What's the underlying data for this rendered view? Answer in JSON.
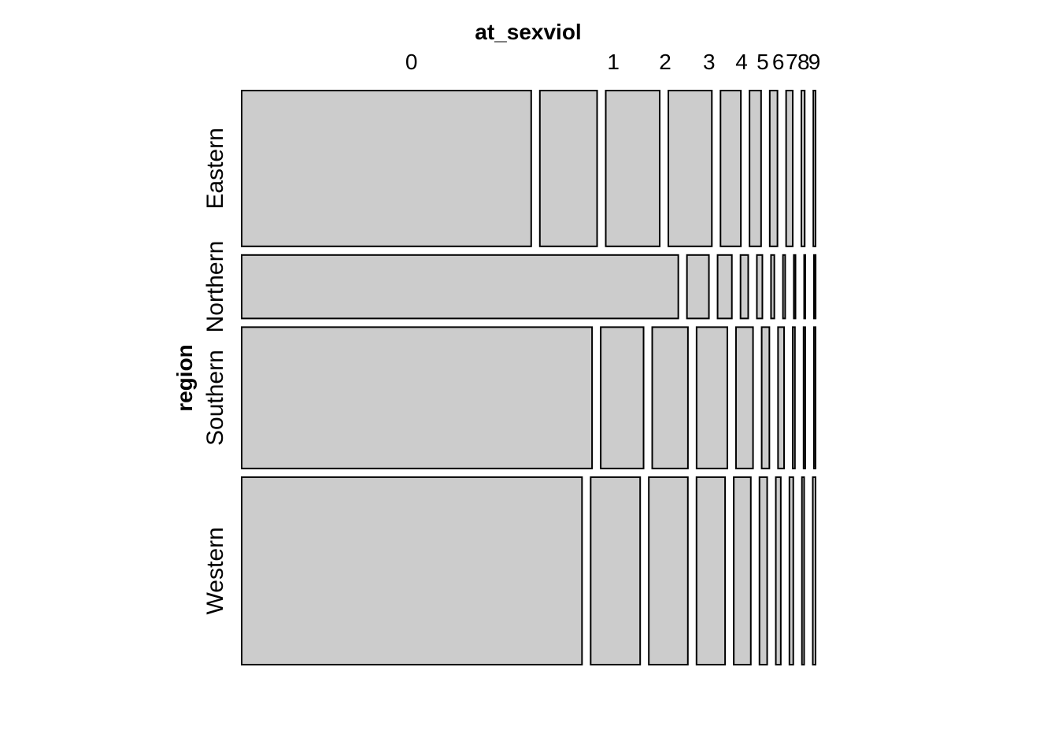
{
  "chart_data": {
    "type": "mosaic",
    "title": "",
    "xlabel": "at_sexviol",
    "ylabel": "region",
    "x_categories": [
      "0",
      "1",
      "2",
      "3",
      "4",
      "5",
      "6",
      "7",
      "8",
      "9"
    ],
    "y_categories": [
      "Eastern",
      "Northern",
      "Southern",
      "Western"
    ],
    "row_shares": [
      0.27,
      0.11,
      0.245,
      0.325
    ],
    "cells": [
      {
        "region": "Eastern",
        "values": [
          0.526,
          0.104,
          0.098,
          0.079,
          0.037,
          0.021,
          0.014,
          0.012,
          0.006,
          0.004
        ]
      },
      {
        "region": "Northern",
        "values": [
          0.795,
          0.04,
          0.026,
          0.014,
          0.01,
          0.006,
          0.004,
          0.003,
          0.002,
          0.003
        ]
      },
      {
        "region": "Southern",
        "values": [
          0.638,
          0.078,
          0.065,
          0.056,
          0.031,
          0.014,
          0.011,
          0.004,
          0.003,
          0.003
        ]
      },
      {
        "region": "Western",
        "values": [
          0.619,
          0.09,
          0.071,
          0.052,
          0.031,
          0.014,
          0.009,
          0.007,
          0.004,
          0.005
        ]
      }
    ],
    "fill_color": "#cccccc",
    "stroke_color": "#000000"
  }
}
